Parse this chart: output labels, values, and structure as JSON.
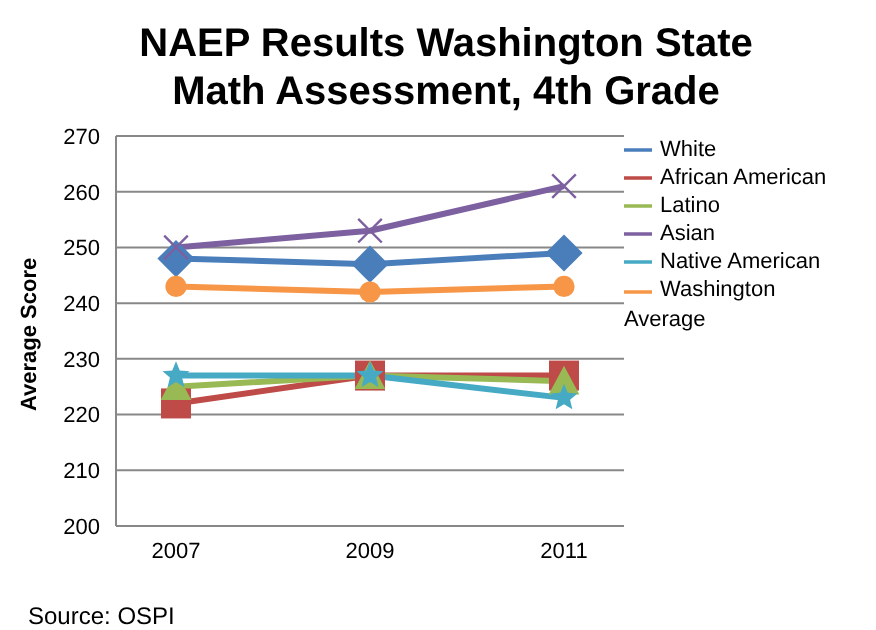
{
  "chart_data": {
    "type": "line",
    "title": "NAEP Results Washington State\nMath Assessment, 4th Grade",
    "ylabel": "Average Score",
    "categories": [
      "2007",
      "2009",
      "2011"
    ],
    "series": [
      {
        "name": "White",
        "color": "#4a7ebb",
        "marker": "diamond",
        "values": [
          248,
          247,
          249
        ]
      },
      {
        "name": "African American",
        "color": "#be4b48",
        "marker": "square",
        "values": [
          222,
          227,
          227
        ]
      },
      {
        "name": "Latino",
        "color": "#98b954",
        "marker": "triangle",
        "values": [
          225,
          227,
          226
        ]
      },
      {
        "name": "Asian",
        "color": "#7d60a0",
        "marker": "cross",
        "values": [
          250,
          253,
          261
        ]
      },
      {
        "name": "Native American",
        "color": "#46aac5",
        "marker": "star",
        "values": [
          227,
          227,
          223
        ]
      },
      {
        "name": "Washington Average",
        "color": "#f79646",
        "marker": "circle",
        "values": [
          243,
          242,
          243
        ]
      }
    ],
    "ylim": [
      200,
      270
    ],
    "yticks": [
      200,
      210,
      220,
      230,
      240,
      250,
      260,
      270
    ],
    "grid": "y",
    "legend": "right",
    "annotations": [
      "Source: OSPI"
    ]
  }
}
